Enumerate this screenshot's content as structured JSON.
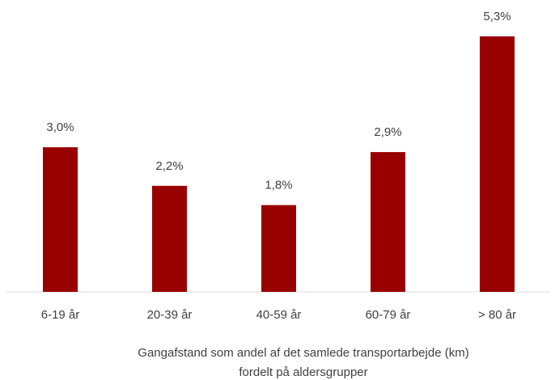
{
  "chart_data": {
    "type": "bar",
    "title": [
      "Gangafstand som andel af det samlede transportarbejde (km)",
      "fordelt på aldersgrupper"
    ],
    "categories": [
      "6-19 år",
      "20-39 år",
      "40-59 år",
      "60-79 år",
      "> 80 år"
    ],
    "values": [
      3.0,
      2.2,
      1.8,
      2.9,
      5.3
    ],
    "value_labels": [
      "3,0%",
      "2,2%",
      "1,8%",
      "2,9%",
      "5,3%"
    ],
    "color": "#990000"
  }
}
